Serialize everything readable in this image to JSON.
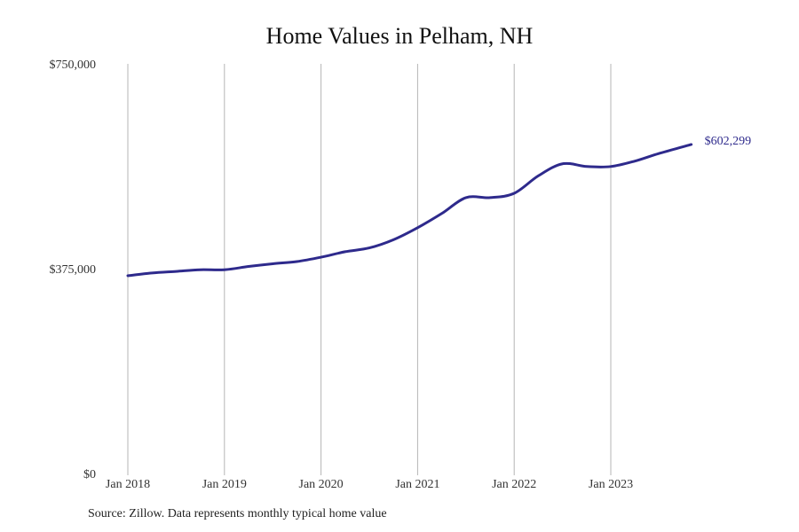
{
  "title": "Home Values in Pelham, NH",
  "source": "Source: Zillow. Data represents monthly typical home value",
  "colors": {
    "line": "#2e2a8c",
    "grid": "#b5b5b5",
    "text": "#333333"
  },
  "chart_data": {
    "type": "line",
    "title": "Home Values in Pelham, NH",
    "xlabel": "",
    "ylabel": "",
    "ylim": [
      0,
      750000
    ],
    "yticks": [
      0,
      375000,
      750000
    ],
    "ytick_labels": [
      "$0",
      "$375,000",
      "$750,000"
    ],
    "xtick_labels": [
      "Jan 2018",
      "Jan 2019",
      "Jan 2020",
      "Jan 2021",
      "Jan 2022",
      "Jan 2023"
    ],
    "grid": "vertical",
    "legend": null,
    "end_label": "$602,299",
    "series": [
      {
        "name": "Typical home value",
        "x": [
          "2018-01",
          "2018-04",
          "2018-07",
          "2018-10",
          "2019-01",
          "2019-04",
          "2019-07",
          "2019-10",
          "2020-01",
          "2020-04",
          "2020-07",
          "2020-10",
          "2021-01",
          "2021-04",
          "2021-07",
          "2021-10",
          "2022-01",
          "2022-04",
          "2022-07",
          "2022-10",
          "2023-01",
          "2023-04",
          "2023-07",
          "2023-11"
        ],
        "values": [
          362000,
          367000,
          370000,
          373000,
          373000,
          379000,
          384000,
          388000,
          396000,
          406000,
          413000,
          428000,
          450000,
          476000,
          505000,
          505000,
          513000,
          545000,
          567000,
          562000,
          562000,
          572000,
          586000,
          602299
        ]
      }
    ]
  }
}
